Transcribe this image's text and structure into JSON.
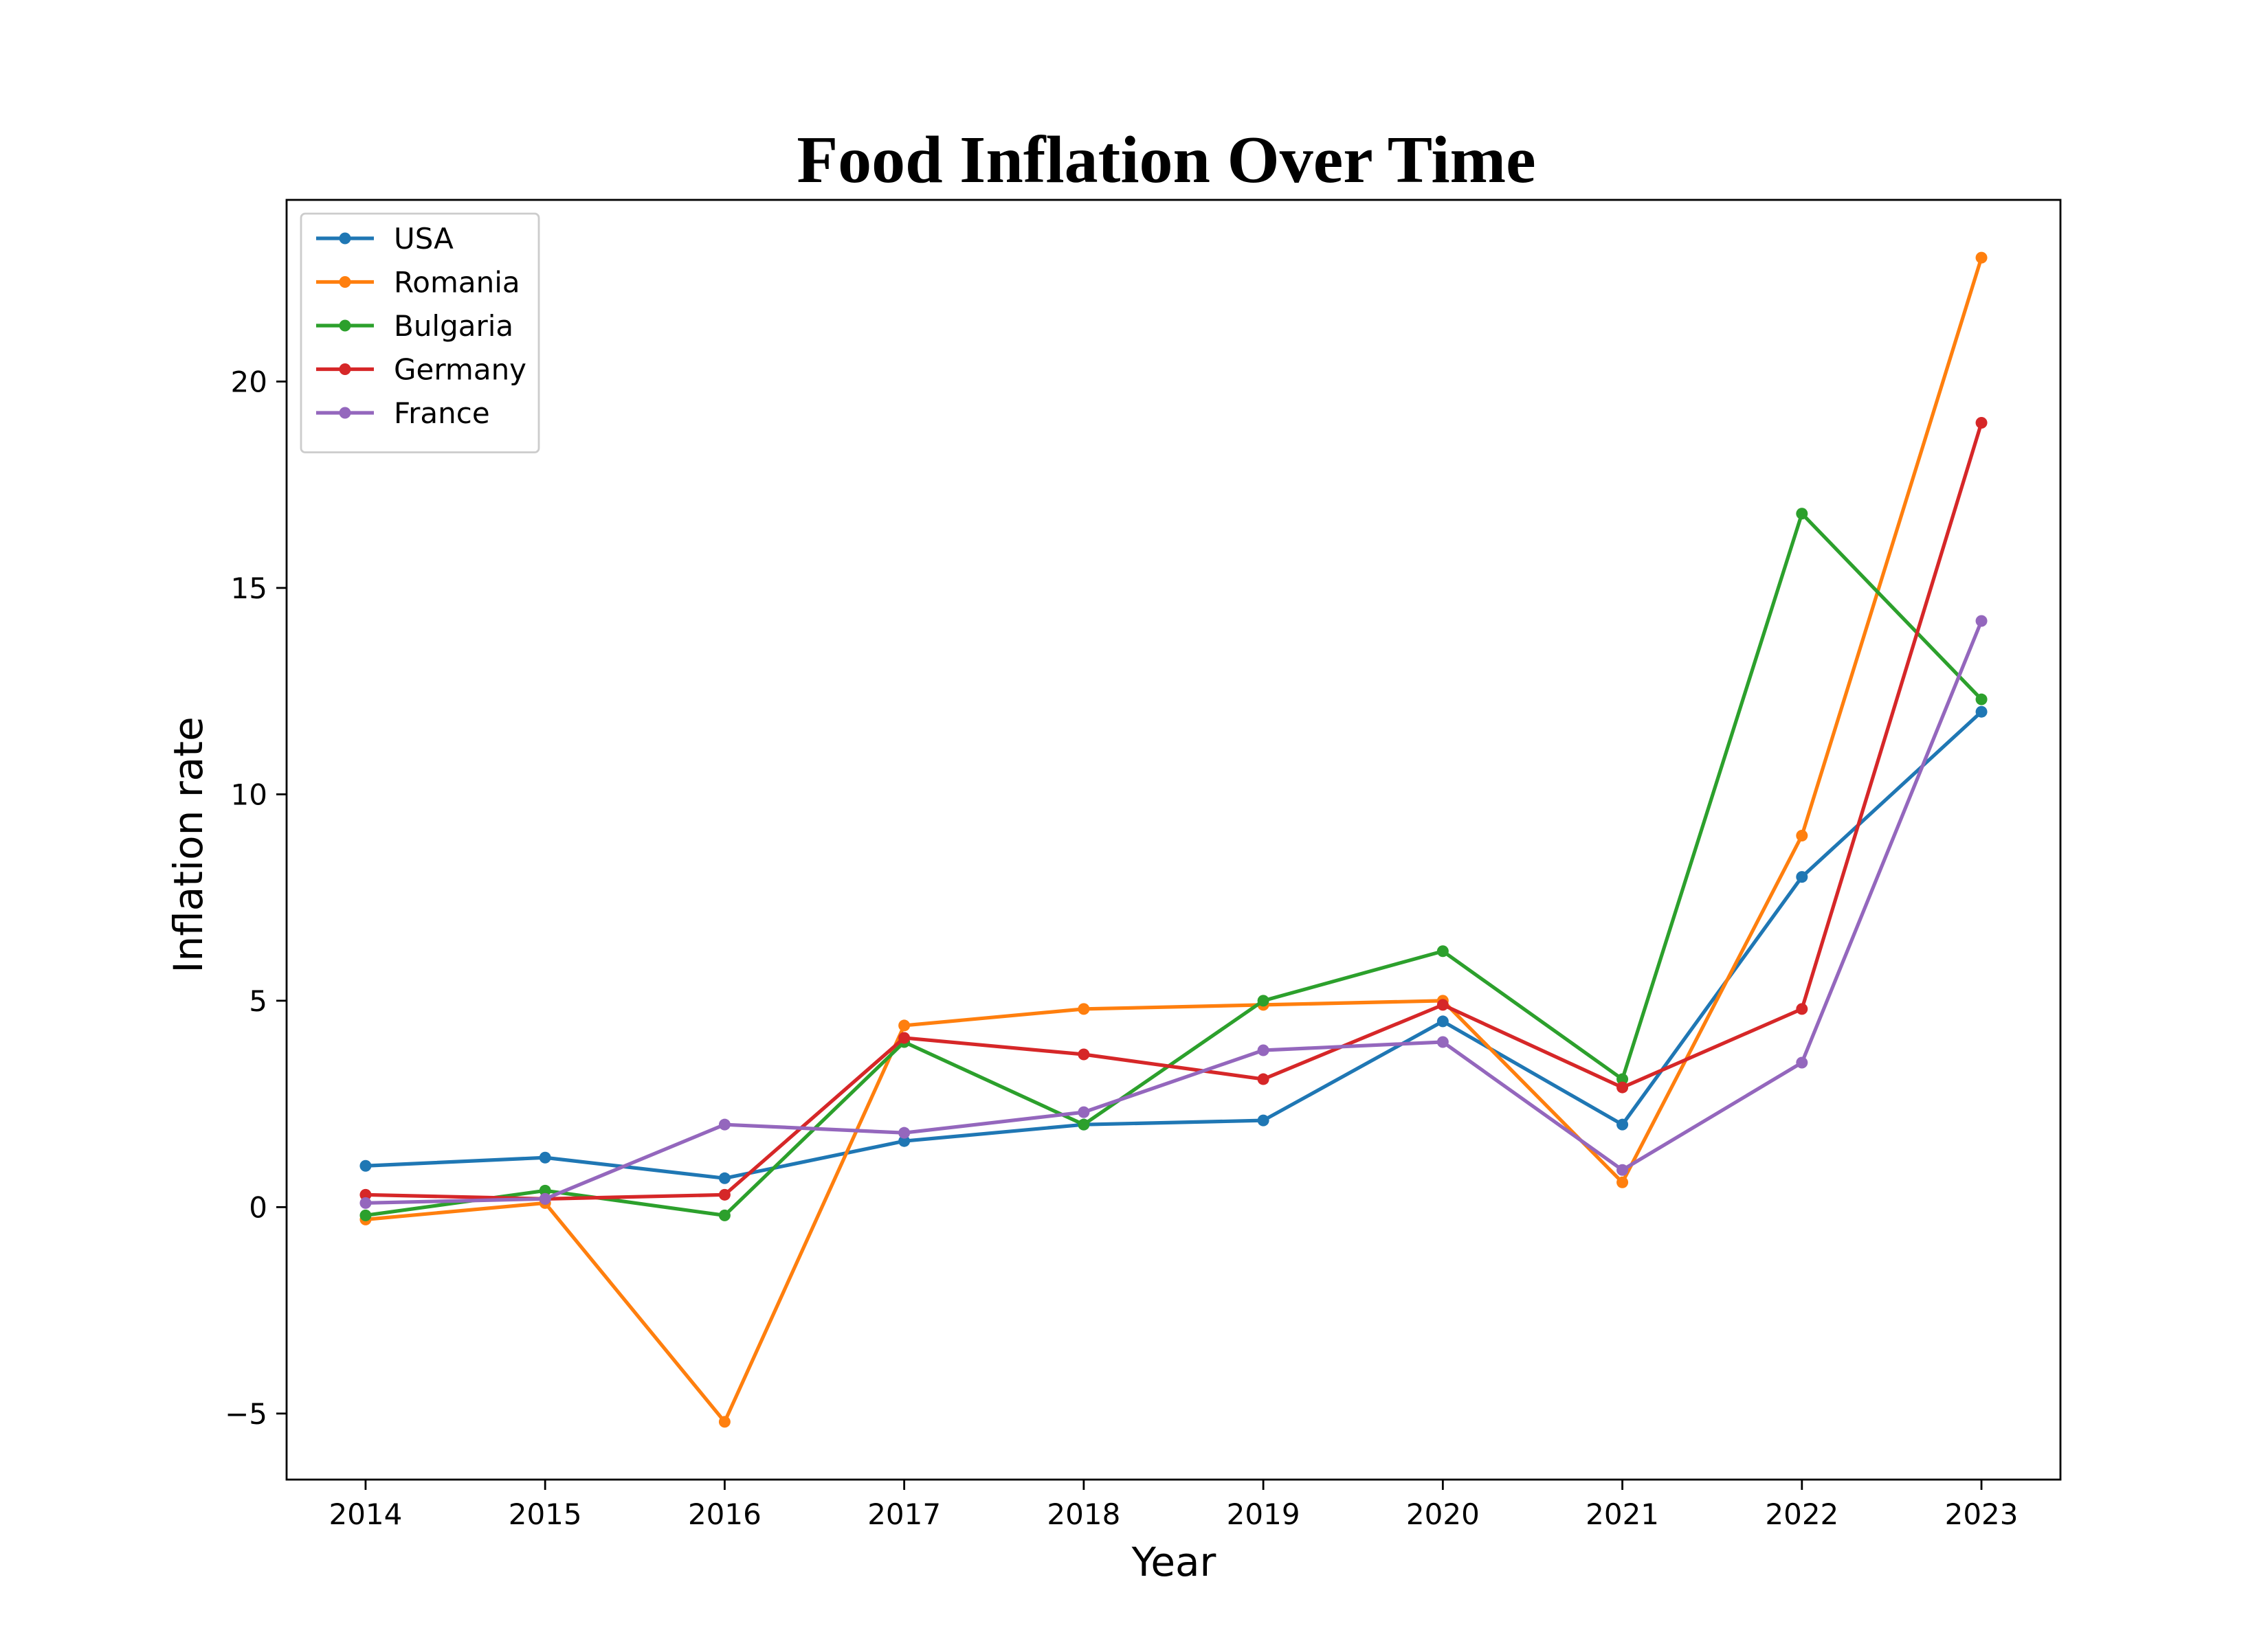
{
  "chart_data": {
    "type": "line",
    "title": "Food Inflation Over Time",
    "xlabel": "Year",
    "ylabel": "Inflation rate",
    "x": [
      2014,
      2015,
      2016,
      2017,
      2018,
      2019,
      2020,
      2021,
      2022,
      2023
    ],
    "x_ticks": [
      "2014",
      "2015",
      "2016",
      "2017",
      "2018",
      "2019",
      "2020",
      "2021",
      "2022",
      "2023"
    ],
    "y_ticks": [
      "−5",
      "0",
      "5",
      "10",
      "15",
      "20"
    ],
    "y_tick_values": [
      -5,
      0,
      5,
      10,
      15,
      20
    ],
    "xlim": [
      2013.56,
      2023.44
    ],
    "ylim": [
      -6.6,
      24.4
    ],
    "grid": false,
    "legend_position": "top-left",
    "series": [
      {
        "name": "USA",
        "color": "#1f77b4",
        "values": [
          1.0,
          1.2,
          0.7,
          1.6,
          2.0,
          2.1,
          4.5,
          2.0,
          8.0,
          12.0
        ]
      },
      {
        "name": "Romania",
        "color": "#ff7f0e",
        "values": [
          -0.3,
          0.1,
          -5.2,
          4.4,
          4.8,
          4.9,
          5.0,
          0.6,
          9.0,
          23.0
        ]
      },
      {
        "name": "Bulgaria",
        "color": "#2ca02c",
        "values": [
          -0.2,
          0.4,
          -0.2,
          4.0,
          2.0,
          5.0,
          6.2,
          3.1,
          16.8,
          12.3
        ]
      },
      {
        "name": "Germany",
        "color": "#d62728",
        "values": [
          0.3,
          0.2,
          0.3,
          4.1,
          3.7,
          3.1,
          4.9,
          2.9,
          4.8,
          19.0
        ]
      },
      {
        "name": "France",
        "color": "#9467bd",
        "values": [
          0.1,
          0.2,
          2.0,
          1.8,
          2.3,
          3.8,
          4.0,
          0.9,
          3.5,
          14.2
        ]
      }
    ]
  }
}
